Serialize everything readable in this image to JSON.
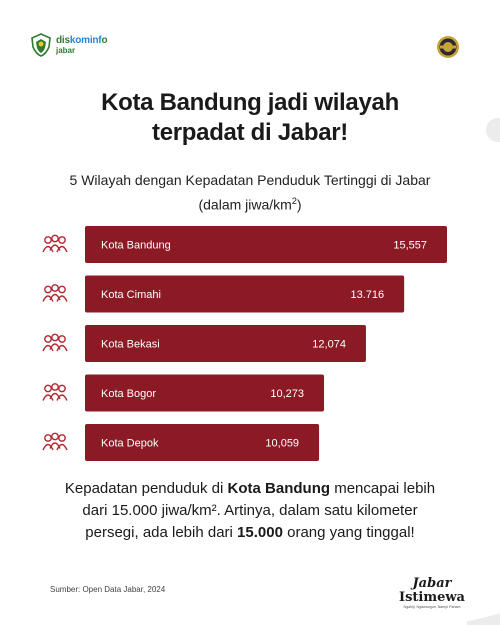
{
  "header": {
    "brand_line1_a": "dis",
    "brand_line1_b": "kominf",
    "brand_line1_c": "o",
    "brand_line2": "jabar",
    "logo_icon": "west-java-emblem-icon",
    "seal_icon": "gold-seal-icon"
  },
  "title": {
    "line1": "Kota Bandung jadi wilayah",
    "line2": "terpadat di Jabar!"
  },
  "subtitle": {
    "line1": "5 Wilayah dengan Kepadatan Penduduk Tertinggi di Jabar",
    "line2_prefix": "(dalam jiwa/km",
    "line2_sup": "2",
    "line2_suffix": ")"
  },
  "chart_data": {
    "type": "bar",
    "orientation": "horizontal",
    "categories": [
      "Kota Bandung",
      "Kota Cimahi",
      "Kota Bekasi",
      "Kota Bogor",
      "Kota Depok"
    ],
    "values": [
      15557,
      13716,
      12074,
      10273,
      10059
    ],
    "value_labels": [
      "15,557",
      "13.716",
      "12,074",
      "10,273",
      "10,059"
    ],
    "bar_color": "#8b1a24",
    "icon_color": "#b0272f",
    "row_icon": "people-group-icon"
  },
  "footer": {
    "p1": "Kepadatan penduduk di ",
    "p1_bold": "Kota Bandung",
    "p1_end": " mencapai lebih",
    "p2": "dari 15.000 jiwa/km².  Artinya, dalam satu kilometer",
    "p3": "persegi, ada lebih dari ",
    "p3_bold": "15.000",
    "p3_end": " orang yang tinggal!",
    "source": "Sumber: Open Data Jabar, 2024",
    "logo_line1": "Jabar",
    "logo_line2": "Istimewa",
    "logo_tagline": "Ngahiji, Ngawangun, Nampi Paham"
  }
}
